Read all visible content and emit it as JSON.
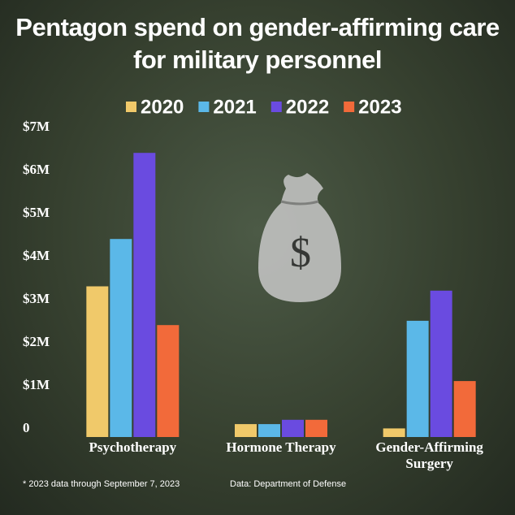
{
  "chart_data": {
    "type": "bar",
    "title": "Pentagon spend on gender-affirming care for military personnel",
    "categories": [
      "Psychotherapy",
      "Hormone Therapy",
      "Gender-Affirming\nSurgery"
    ],
    "series": [
      {
        "name": "2020",
        "color": "#f0c96a",
        "values": [
          3500000,
          300000,
          200000
        ]
      },
      {
        "name": "2021",
        "color": "#5bb8e8",
        "values": [
          4600000,
          300000,
          2700000
        ]
      },
      {
        "name": "2022",
        "color": "#6a4be0",
        "values": [
          6600000,
          400000,
          3400000
        ]
      },
      {
        "name": "2023",
        "color": "#f26a3a",
        "values": [
          2600000,
          400000,
          1300000
        ]
      }
    ],
    "ylim": [
      0,
      7000000
    ],
    "yticks": [
      0,
      {
        "value": 1000000,
        "label": "$1M"
      },
      {
        "value": 2000000,
        "label": "$2M"
      },
      {
        "value": 3000000,
        "label": "$3M"
      },
      {
        "value": 4000000,
        "label": "$4M"
      },
      {
        "value": 5000000,
        "label": "$5M"
      },
      {
        "value": 6000000,
        "label": "$6M"
      },
      {
        "value": 7000000,
        "label": "$7M"
      }
    ],
    "grid": false,
    "footnote": "* 2023 data through September 7, 2023",
    "source": "Data: Department of Defense"
  }
}
